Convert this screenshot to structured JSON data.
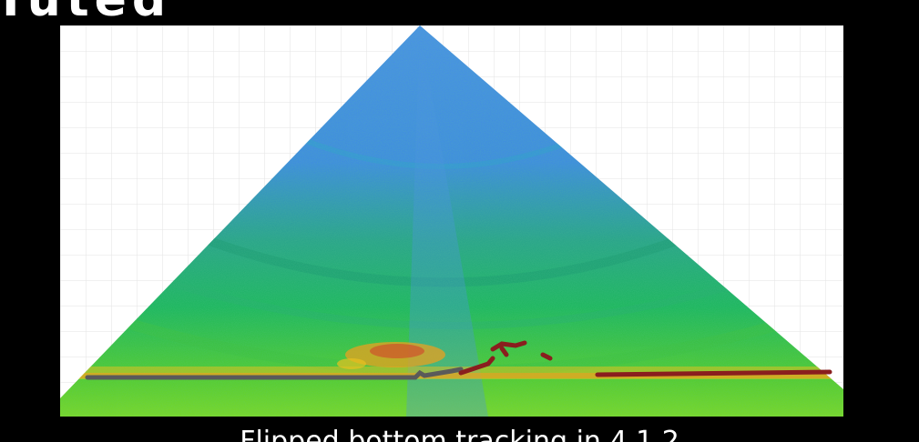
{
  "slide": {
    "title_partial": "Tuted",
    "caption": "Flipped bottom tracking in 4.1.2",
    "image": {
      "subject": "sonar-fan-image",
      "background_color": "#ffffff",
      "gridline_color": "#e3e3e3",
      "fan_colors": {
        "low_intensity": "#3f8de0",
        "mid_intensity": "#1fb85f",
        "high_intensity": "#6ad12a",
        "hot": "#e8a020",
        "echo": "#d23a2a"
      },
      "bottom_track_colors": {
        "grey_line": "#5a5a5a",
        "red_line": "#8a1e1e"
      }
    }
  }
}
